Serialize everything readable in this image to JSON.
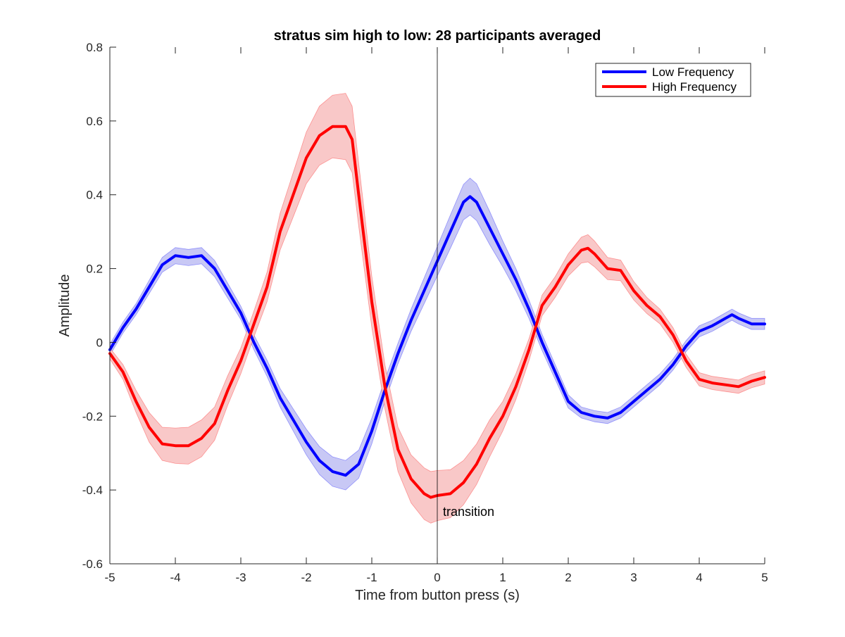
{
  "chart_data": {
    "type": "line",
    "title": "stratus sim high to low: 28 participants averaged",
    "xlabel": "Time from button press (s)",
    "ylabel": "Amplitude",
    "xlim": [
      -5,
      5
    ],
    "ylim": [
      -0.6,
      0.8
    ],
    "xticks": [
      "-5",
      "-4",
      "-3",
      "-2",
      "-1",
      "0",
      "1",
      "2",
      "3",
      "4",
      "5"
    ],
    "yticks": [
      "-0.6",
      "-0.4",
      "-0.2",
      "0",
      "0.2",
      "0.4",
      "0.6",
      "0.8"
    ],
    "grid": false,
    "legend_position": "top-right",
    "annotation": {
      "text": "transition",
      "x": 0
    },
    "series": [
      {
        "name": "Low Frequency",
        "color": "#0000ff",
        "band_color": "#c8c8f5",
        "x": [
          -5,
          -4.8,
          -4.6,
          -4.4,
          -4.2,
          -4.0,
          -3.8,
          -3.6,
          -3.4,
          -3.2,
          -3.0,
          -2.8,
          -2.6,
          -2.4,
          -2.2,
          -2.0,
          -1.8,
          -1.6,
          -1.4,
          -1.2,
          -1.0,
          -0.8,
          -0.6,
          -0.4,
          -0.2,
          0.0,
          0.2,
          0.4,
          0.5,
          0.6,
          0.8,
          1.0,
          1.2,
          1.4,
          1.6,
          1.8,
          2.0,
          2.2,
          2.4,
          2.6,
          2.8,
          3.0,
          3.2,
          3.4,
          3.6,
          3.8,
          4.0,
          4.2,
          4.4,
          4.5,
          4.6,
          4.8,
          5.0
        ],
        "y": [
          -0.02,
          0.04,
          0.09,
          0.15,
          0.21,
          0.235,
          0.23,
          0.235,
          0.2,
          0.14,
          0.08,
          0.0,
          -0.07,
          -0.15,
          -0.21,
          -0.27,
          -0.32,
          -0.35,
          -0.36,
          -0.33,
          -0.24,
          -0.13,
          -0.03,
          0.06,
          0.14,
          0.22,
          0.3,
          0.38,
          0.395,
          0.38,
          0.31,
          0.24,
          0.17,
          0.09,
          0.0,
          -0.08,
          -0.16,
          -0.19,
          -0.2,
          -0.205,
          -0.19,
          -0.16,
          -0.13,
          -0.1,
          -0.06,
          -0.01,
          0.03,
          0.045,
          0.065,
          0.075,
          0.065,
          0.05,
          0.05
        ],
        "band": [
          0.015,
          0.015,
          0.015,
          0.018,
          0.02,
          0.022,
          0.022,
          0.022,
          0.022,
          0.02,
          0.018,
          0.02,
          0.022,
          0.025,
          0.03,
          0.035,
          0.038,
          0.04,
          0.04,
          0.038,
          0.035,
          0.03,
          0.028,
          0.03,
          0.035,
          0.04,
          0.045,
          0.048,
          0.05,
          0.05,
          0.045,
          0.035,
          0.03,
          0.025,
          0.022,
          0.02,
          0.018,
          0.015,
          0.015,
          0.015,
          0.015,
          0.015,
          0.015,
          0.015,
          0.015,
          0.015,
          0.015,
          0.015,
          0.015,
          0.015,
          0.015,
          0.015,
          0.015
        ]
      },
      {
        "name": "High Frequency",
        "color": "#ff0000",
        "band_color": "#f9c8c8",
        "x": [
          -5,
          -4.8,
          -4.6,
          -4.4,
          -4.2,
          -4.0,
          -3.8,
          -3.6,
          -3.4,
          -3.2,
          -3.0,
          -2.8,
          -2.6,
          -2.4,
          -2.2,
          -2.0,
          -1.8,
          -1.6,
          -1.4,
          -1.3,
          -1.2,
          -1.0,
          -0.8,
          -0.6,
          -0.4,
          -0.2,
          -0.1,
          0.0,
          0.2,
          0.4,
          0.6,
          0.8,
          1.0,
          1.2,
          1.4,
          1.6,
          1.8,
          2.0,
          2.2,
          2.3,
          2.4,
          2.6,
          2.8,
          3.0,
          3.2,
          3.4,
          3.6,
          3.8,
          4.0,
          4.2,
          4.4,
          4.6,
          4.8,
          5.0
        ],
        "y": [
          -0.03,
          -0.08,
          -0.16,
          -0.23,
          -0.275,
          -0.28,
          -0.28,
          -0.26,
          -0.22,
          -0.13,
          -0.05,
          0.05,
          0.15,
          0.3,
          0.4,
          0.5,
          0.56,
          0.585,
          0.585,
          0.55,
          0.4,
          0.11,
          -0.12,
          -0.29,
          -0.37,
          -0.41,
          -0.42,
          -0.415,
          -0.41,
          -0.38,
          -0.33,
          -0.26,
          -0.2,
          -0.12,
          -0.02,
          0.1,
          0.15,
          0.21,
          0.25,
          0.255,
          0.24,
          0.2,
          0.195,
          0.14,
          0.1,
          0.07,
          0.02,
          -0.05,
          -0.1,
          -0.11,
          -0.115,
          -0.12,
          -0.105,
          -0.095
        ],
        "band": [
          0.015,
          0.02,
          0.03,
          0.04,
          0.045,
          0.048,
          0.05,
          0.05,
          0.045,
          0.04,
          0.035,
          0.035,
          0.04,
          0.05,
          0.06,
          0.07,
          0.08,
          0.085,
          0.09,
          0.09,
          0.085,
          0.07,
          0.06,
          0.06,
          0.065,
          0.07,
          0.07,
          0.068,
          0.065,
          0.06,
          0.055,
          0.05,
          0.04,
          0.035,
          0.03,
          0.028,
          0.028,
          0.03,
          0.035,
          0.037,
          0.035,
          0.03,
          0.028,
          0.025,
          0.022,
          0.02,
          0.02,
          0.018,
          0.018,
          0.018,
          0.018,
          0.018,
          0.018,
          0.018
        ]
      }
    ]
  }
}
